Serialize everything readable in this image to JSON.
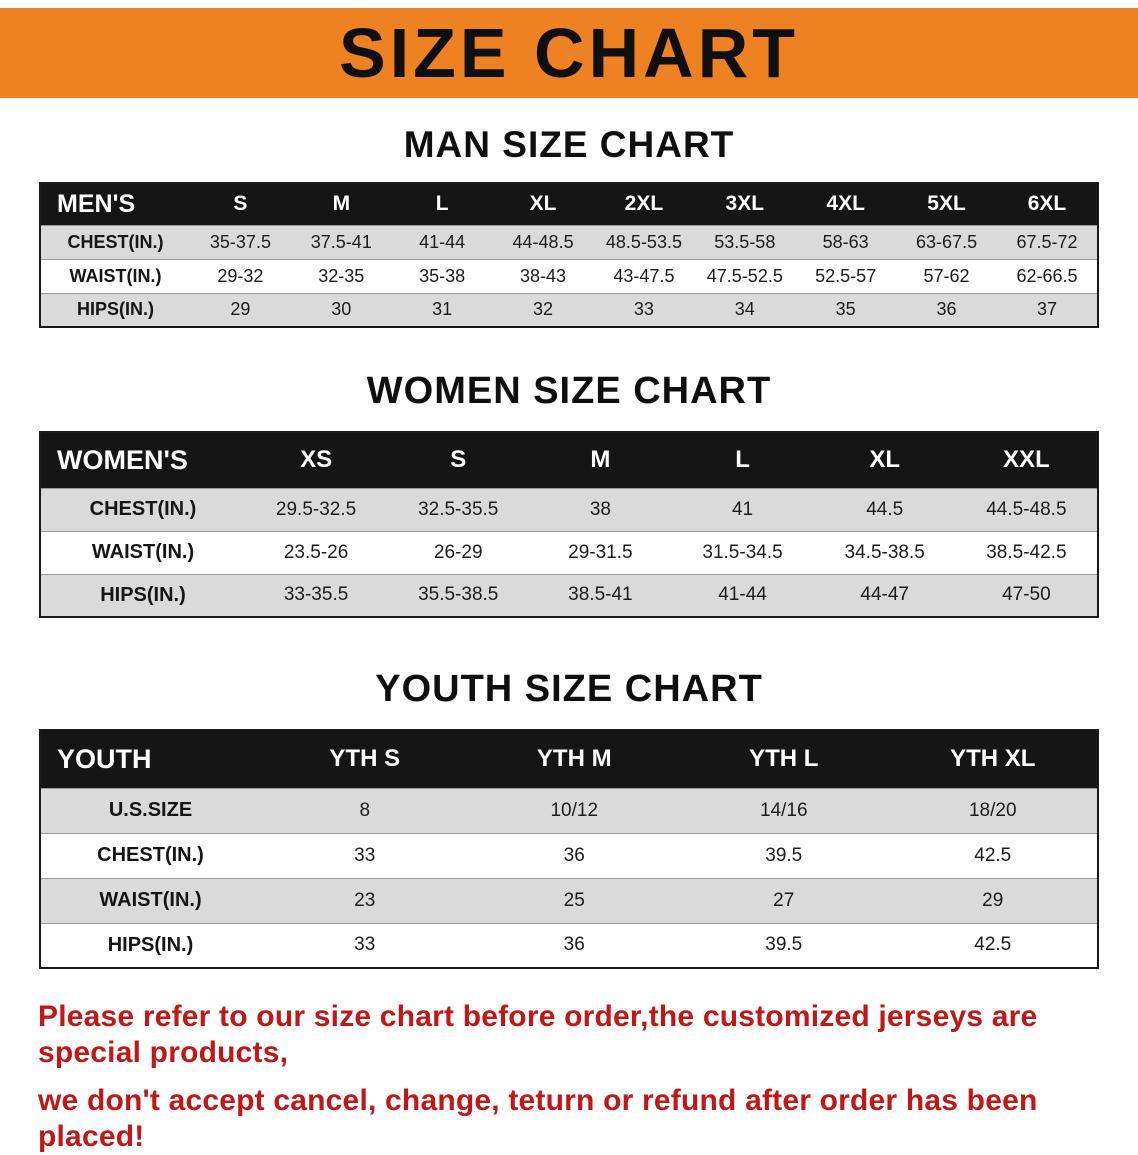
{
  "banner": {
    "title": "SIZE CHART"
  },
  "colors": {
    "banner_bg": "#ee8121",
    "table_header_bg": "#151515",
    "row_stripe": "#dadada",
    "disclaimer_text": "#c21717"
  },
  "chart_data": [
    {
      "type": "table",
      "title": "MAN SIZE CHART",
      "columns": [
        "MEN'S",
        "S",
        "M",
        "L",
        "XL",
        "2XL",
        "3XL",
        "4XL",
        "5XL",
        "6XL"
      ],
      "rows": [
        {
          "label": "CHEST(IN.)",
          "values": [
            "35-37.5",
            "37.5-41",
            "41-44",
            "44-48.5",
            "48.5-53.5",
            "53.5-58",
            "58-63",
            "63-67.5",
            "67.5-72"
          ]
        },
        {
          "label": "WAIST(IN.)",
          "values": [
            "29-32",
            "32-35",
            "35-38",
            "38-43",
            "43-47.5",
            "47.5-52.5",
            "52.5-57",
            "57-62",
            "62-66.5"
          ]
        },
        {
          "label": "HIPS(IN.)",
          "values": [
            "29",
            "30",
            "31",
            "32",
            "33",
            "34",
            "35",
            "36",
            "37"
          ]
        }
      ]
    },
    {
      "type": "table",
      "title": "WOMEN SIZE CHART",
      "columns": [
        "WOMEN'S",
        "XS",
        "S",
        "M",
        "L",
        "XL",
        "XXL"
      ],
      "rows": [
        {
          "label": "CHEST(IN.)",
          "values": [
            "29.5-32.5",
            "32.5-35.5",
            "38",
            "41",
            "44.5",
            "44.5-48.5"
          ]
        },
        {
          "label": "WAIST(IN.)",
          "values": [
            "23.5-26",
            "26-29",
            "29-31.5",
            "31.5-34.5",
            "34.5-38.5",
            "38.5-42.5"
          ]
        },
        {
          "label": "HIPS(IN.)",
          "values": [
            "33-35.5",
            "35.5-38.5",
            "38.5-41",
            "41-44",
            "44-47",
            "47-50"
          ]
        }
      ]
    },
    {
      "type": "table",
      "title": "YOUTH SIZE CHART",
      "columns": [
        "YOUTH",
        "YTH S",
        "YTH M",
        "YTH L",
        "YTH XL"
      ],
      "rows": [
        {
          "label": "U.S.SIZE",
          "values": [
            "8",
            "10/12",
            "14/16",
            "18/20"
          ]
        },
        {
          "label": "CHEST(IN.)",
          "values": [
            "33",
            "36",
            "39.5",
            "42.5"
          ]
        },
        {
          "label": "WAIST(IN.)",
          "values": [
            "23",
            "25",
            "27",
            "29"
          ]
        },
        {
          "label": "HIPS(IN.)",
          "values": [
            "33",
            "36",
            "39.5",
            "42.5"
          ]
        }
      ]
    }
  ],
  "disclaimer": {
    "line1": "Please refer to our size chart before order,the customized jerseys are special products,",
    "line2": "we don't accept cancel, change, teturn or refund after order has been placed!"
  }
}
